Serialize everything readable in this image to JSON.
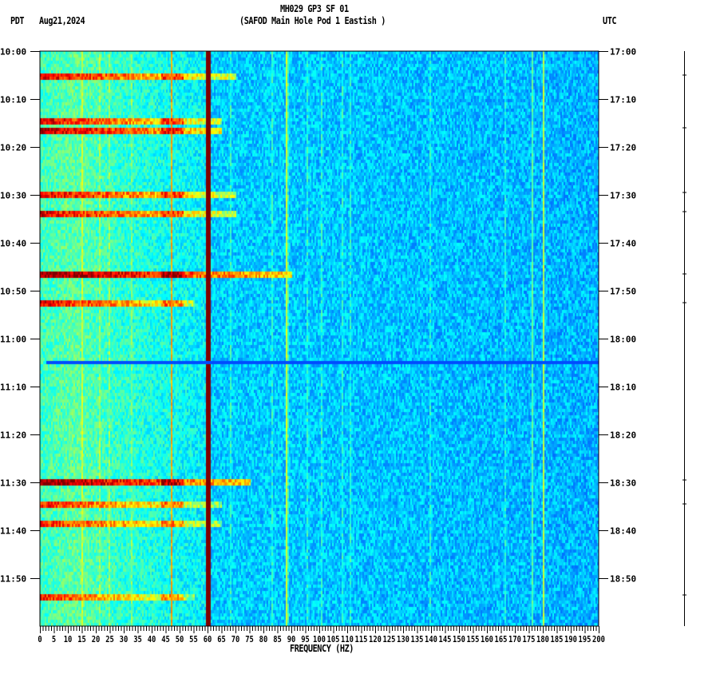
{
  "header": {
    "title": "MH029 GP3 SF 01",
    "subtitle": "(SAFOD Main Hole Pod 1 Eastish )",
    "left_timezone": "PDT",
    "date": "Aug21,2024",
    "right_timezone": "UTC"
  },
  "chart_data": {
    "type": "heatmap",
    "title": "MH029 GP3 SF 01",
    "xlabel": "FREQUENCY (HZ)",
    "ylabel": "",
    "xlim": [
      0,
      200
    ],
    "ylim_minutes": [
      0,
      120
    ],
    "x_tick_labels": [
      "0",
      "5",
      "10",
      "15",
      "20",
      "25",
      "30",
      "35",
      "40",
      "45",
      "50",
      "55",
      "60",
      "65",
      "70",
      "75",
      "80",
      "85",
      "90",
      "95",
      "100",
      "105",
      "110",
      "115",
      "120",
      "125",
      "130",
      "135",
      "140",
      "145",
      "150",
      "155",
      "160",
      "165",
      "170",
      "175",
      "180",
      "185",
      "190",
      "195",
      "200"
    ],
    "y_tick_labels_left": [
      "10:00",
      "10:10",
      "10:20",
      "10:30",
      "10:40",
      "10:50",
      "11:00",
      "11:10",
      "11:20",
      "11:30",
      "11:40",
      "11:50"
    ],
    "y_tick_labels_right": [
      "17:00",
      "17:10",
      "17:20",
      "17:30",
      "17:40",
      "17:50",
      "18:00",
      "18:10",
      "18:20",
      "18:30",
      "18:40",
      "18:50"
    ],
    "colormap": "jet",
    "persistent_lines_hz": [
      {
        "freq": 60,
        "intensity": 1.0
      },
      {
        "freq": 47,
        "intensity": 0.75
      },
      {
        "freq": 88,
        "intensity": 0.62
      },
      {
        "freq": 180,
        "intensity": 0.6
      },
      {
        "freq": 176,
        "intensity": 0.5
      },
      {
        "freq": 15,
        "intensity": 0.62
      }
    ],
    "events": [
      {
        "minute": 5,
        "fmax": 70,
        "intensity": 0.9
      },
      {
        "minute": 14.5,
        "fmax": 65,
        "intensity": 0.9
      },
      {
        "minute": 16.5,
        "fmax": 65,
        "intensity": 0.95
      },
      {
        "minute": 29.5,
        "fmax": 70,
        "intensity": 0.9
      },
      {
        "minute": 33.5,
        "fmax": 70,
        "intensity": 0.9
      },
      {
        "minute": 46.5,
        "fmax": 90,
        "intensity": 1.0
      },
      {
        "minute": 52.5,
        "fmax": 55,
        "intensity": 0.9
      },
      {
        "minute": 89.5,
        "fmax": 75,
        "intensity": 1.0
      },
      {
        "minute": 94.5,
        "fmax": 65,
        "intensity": 0.85
      },
      {
        "minute": 98.5,
        "fmax": 65,
        "intensity": 0.85
      },
      {
        "minute": 113.5,
        "fmax": 55,
        "intensity": 0.85
      }
    ],
    "quiet_band_minute": 64.5
  }
}
